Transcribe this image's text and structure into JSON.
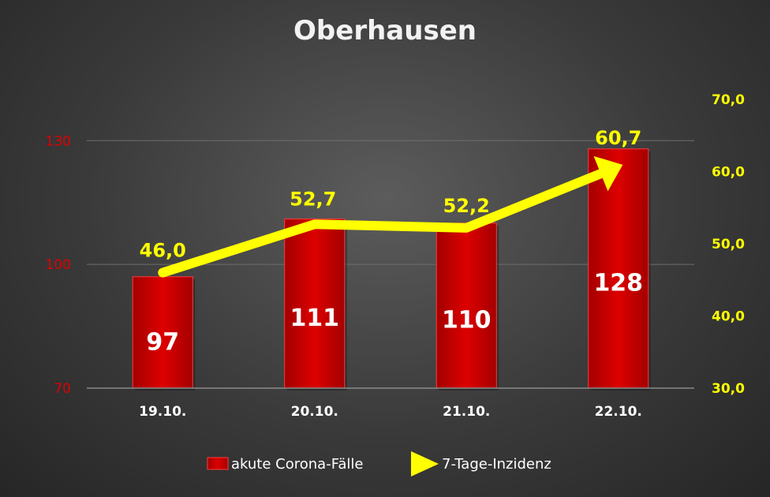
{
  "chart_data": {
    "type": "bar",
    "title": "Oberhausen",
    "categories": [
      "19.10.",
      "20.10.",
      "21.10.",
      "22.10."
    ],
    "series": [
      {
        "name": "akute Corona-Fälle",
        "type": "bar",
        "axis": "left",
        "values": [
          97,
          111,
          110,
          128
        ],
        "labels": [
          "97",
          "111",
          "110",
          "128"
        ],
        "color": "#cc0000"
      },
      {
        "name": "7-Tage-Inzidenz",
        "type": "line",
        "axis": "right",
        "values": [
          46.0,
          52.7,
          52.2,
          60.7
        ],
        "labels": [
          "46,0",
          "52,7",
          "52,2",
          "60,7"
        ],
        "color": "#ffff00"
      }
    ],
    "y_left": {
      "ylim": [
        70,
        140
      ],
      "ticks": [
        70,
        100,
        130
      ],
      "tick_labels": [
        "70",
        "100",
        "130"
      ],
      "color": "#e00000"
    },
    "y_right": {
      "ylim": [
        30,
        70
      ],
      "ticks": [
        30,
        40,
        50,
        60,
        70
      ],
      "tick_labels": [
        "30,0",
        "40,0",
        "50,0",
        "60,0",
        "70,0"
      ],
      "color": "#ffff00"
    },
    "grid": true,
    "legend_position": "bottom"
  }
}
